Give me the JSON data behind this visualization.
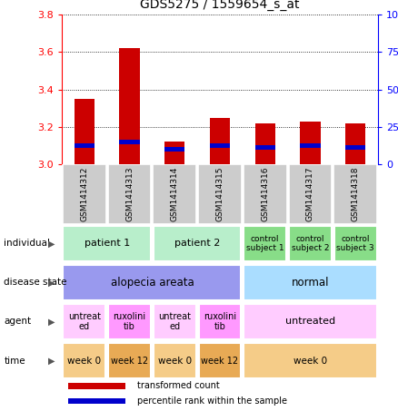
{
  "title": "GDS5275 / 1559654_s_at",
  "samples": [
    "GSM1414312",
    "GSM1414313",
    "GSM1414314",
    "GSM1414315",
    "GSM1414316",
    "GSM1414317",
    "GSM1414318"
  ],
  "red_values": [
    3.35,
    3.62,
    3.12,
    3.25,
    3.22,
    3.23,
    3.22
  ],
  "blue_values": [
    3.1,
    3.12,
    3.08,
    3.1,
    3.09,
    3.1,
    3.09
  ],
  "ylim": [
    3.0,
    3.8
  ],
  "y_ticks_left": [
    3.0,
    3.2,
    3.4,
    3.6,
    3.8
  ],
  "y_ticks_right": [
    0,
    25,
    50,
    75,
    100
  ],
  "right_ylim": [
    0,
    100
  ],
  "rows": {
    "individual": {
      "label": "individual",
      "cells": [
        {
          "text": "patient 1",
          "span": [
            0,
            2
          ],
          "bg": "#b8eecb",
          "fontsize": 8
        },
        {
          "text": "patient 2",
          "span": [
            2,
            4
          ],
          "bg": "#b8eecb",
          "fontsize": 8
        },
        {
          "text": "control\nsubject 1",
          "span": [
            4,
            5
          ],
          "bg": "#88dd88",
          "fontsize": 6.5
        },
        {
          "text": "control\nsubject 2",
          "span": [
            5,
            6
          ],
          "bg": "#88dd88",
          "fontsize": 6.5
        },
        {
          "text": "control\nsubject 3",
          "span": [
            6,
            7
          ],
          "bg": "#88dd88",
          "fontsize": 6.5
        }
      ]
    },
    "disease_state": {
      "label": "disease state",
      "cells": [
        {
          "text": "alopecia areata",
          "span": [
            0,
            4
          ],
          "bg": "#9999ee",
          "fontsize": 8.5
        },
        {
          "text": "normal",
          "span": [
            4,
            7
          ],
          "bg": "#aaddff",
          "fontsize": 8.5
        }
      ]
    },
    "agent": {
      "label": "agent",
      "cells": [
        {
          "text": "untreat\ned",
          "span": [
            0,
            1
          ],
          "bg": "#ffccff",
          "fontsize": 7
        },
        {
          "text": "ruxolini\ntib",
          "span": [
            1,
            2
          ],
          "bg": "#ff99ff",
          "fontsize": 7
        },
        {
          "text": "untreat\ned",
          "span": [
            2,
            3
          ],
          "bg": "#ffccff",
          "fontsize": 7
        },
        {
          "text": "ruxolini\ntib",
          "span": [
            3,
            4
          ],
          "bg": "#ff99ff",
          "fontsize": 7
        },
        {
          "text": "untreated",
          "span": [
            4,
            7
          ],
          "bg": "#ffccff",
          "fontsize": 8
        }
      ]
    },
    "time": {
      "label": "time",
      "cells": [
        {
          "text": "week 0",
          "span": [
            0,
            1
          ],
          "bg": "#f5cc88",
          "fontsize": 7.5
        },
        {
          "text": "week 12",
          "span": [
            1,
            2
          ],
          "bg": "#e8aa55",
          "fontsize": 7
        },
        {
          "text": "week 0",
          "span": [
            2,
            3
          ],
          "bg": "#f5cc88",
          "fontsize": 7.5
        },
        {
          "text": "week 12",
          "span": [
            3,
            4
          ],
          "bg": "#e8aa55",
          "fontsize": 7
        },
        {
          "text": "week 0",
          "span": [
            4,
            7
          ],
          "bg": "#f5cc88",
          "fontsize": 7.5
        }
      ]
    }
  },
  "legend": [
    {
      "color": "#cc0000",
      "label": "transformed count"
    },
    {
      "color": "#0000cc",
      "label": "percentile rank within the sample"
    }
  ],
  "bar_width": 0.45,
  "bar_color_red": "#cc0000",
  "bar_color_blue": "#0000cc",
  "sample_box_color": "#cccccc",
  "fig_width": 4.38,
  "fig_height": 4.53,
  "fig_dpi": 100
}
